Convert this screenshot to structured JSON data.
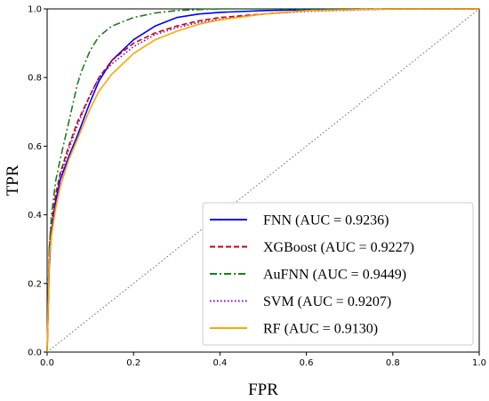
{
  "chart_data": {
    "type": "line",
    "xlabel": "FPR",
    "ylabel": "TPR",
    "xlim": [
      0,
      1
    ],
    "ylim": [
      0,
      1
    ],
    "x_ticks": [
      "0.0",
      "0.2",
      "0.4",
      "0.6",
      "0.8",
      "1.0"
    ],
    "y_ticks": [
      "0.0",
      "0.2",
      "0.4",
      "0.6",
      "0.8",
      "1.0"
    ],
    "grid": false,
    "legend_position": "lower-right",
    "series": [
      {
        "name": "FNN (AUC = 0.9236)",
        "color": "#0000ff",
        "style": "solid",
        "x": [
          0,
          0.005,
          0.01,
          0.02,
          0.03,
          0.05,
          0.07,
          0.1,
          0.12,
          0.15,
          0.2,
          0.25,
          0.3,
          0.35,
          0.4,
          0.5,
          0.6,
          0.8,
          1.0
        ],
        "y": [
          0,
          0.25,
          0.35,
          0.44,
          0.5,
          0.57,
          0.63,
          0.73,
          0.79,
          0.85,
          0.91,
          0.95,
          0.975,
          0.985,
          0.99,
          0.995,
          0.998,
          1.0,
          1.0
        ]
      },
      {
        "name": "XGBoost (AUC = 0.9227)",
        "color": "#cc0000",
        "style": "dashed",
        "x": [
          0,
          0.005,
          0.01,
          0.02,
          0.03,
          0.05,
          0.07,
          0.1,
          0.12,
          0.15,
          0.2,
          0.25,
          0.3,
          0.35,
          0.4,
          0.5,
          0.6,
          0.8,
          1.0
        ],
        "y": [
          0,
          0.3,
          0.38,
          0.46,
          0.52,
          0.6,
          0.67,
          0.75,
          0.8,
          0.85,
          0.9,
          0.93,
          0.95,
          0.965,
          0.975,
          0.985,
          0.995,
          1.0,
          1.0
        ]
      },
      {
        "name": "AuFNN (AUC = 0.9449)",
        "color": "#1a7f1a",
        "style": "dashdot",
        "x": [
          0,
          0.005,
          0.01,
          0.02,
          0.03,
          0.05,
          0.07,
          0.08,
          0.1,
          0.12,
          0.15,
          0.2,
          0.25,
          0.3,
          0.35,
          0.4,
          0.5,
          0.6,
          0.8,
          1.0
        ],
        "y": [
          0,
          0.3,
          0.4,
          0.5,
          0.56,
          0.67,
          0.78,
          0.82,
          0.88,
          0.92,
          0.95,
          0.975,
          0.988,
          0.995,
          0.998,
          1.0,
          1.0,
          1.0,
          1.0,
          1.0
        ]
      },
      {
        "name": "SVM (AUC = 0.9207)",
        "color": "#7700cc",
        "style": "dotted",
        "x": [
          0,
          0.005,
          0.01,
          0.02,
          0.03,
          0.05,
          0.07,
          0.1,
          0.12,
          0.15,
          0.2,
          0.25,
          0.3,
          0.35,
          0.4,
          0.5,
          0.6,
          0.8,
          1.0
        ],
        "y": [
          0,
          0.28,
          0.36,
          0.45,
          0.51,
          0.59,
          0.66,
          0.75,
          0.8,
          0.84,
          0.89,
          0.925,
          0.945,
          0.96,
          0.97,
          0.985,
          0.993,
          1.0,
          1.0
        ]
      },
      {
        "name": "RF (AUC = 0.9130)",
        "color": "#ffa500",
        "style": "solid",
        "x": [
          0,
          0.005,
          0.01,
          0.02,
          0.03,
          0.05,
          0.07,
          0.1,
          0.12,
          0.15,
          0.2,
          0.25,
          0.3,
          0.35,
          0.4,
          0.5,
          0.6,
          0.8,
          1.0
        ],
        "y": [
          0,
          0.27,
          0.34,
          0.42,
          0.48,
          0.56,
          0.62,
          0.71,
          0.76,
          0.81,
          0.87,
          0.91,
          0.935,
          0.955,
          0.968,
          0.985,
          0.995,
          1.0,
          1.0
        ]
      }
    ],
    "reference_line": {
      "x": [
        0,
        1
      ],
      "y": [
        0,
        1
      ],
      "color": "#808080",
      "style": "dotted"
    }
  }
}
